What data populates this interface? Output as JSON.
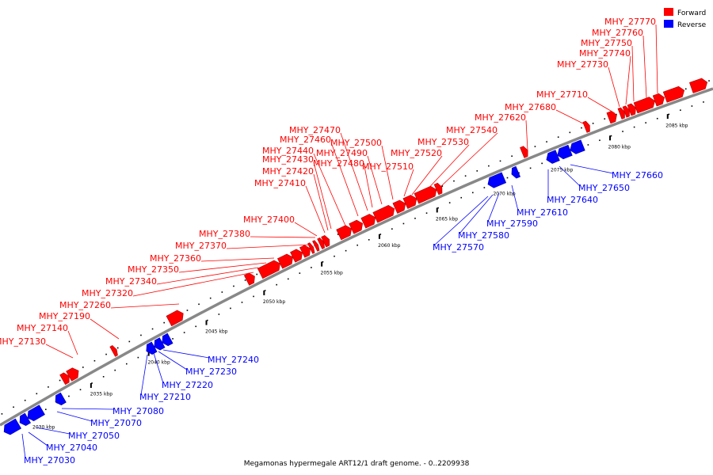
{
  "legend": {
    "forward": {
      "label": "Forward",
      "color": "#ff0000"
    },
    "reverse": {
      "label": "Reverse",
      "color": "#0000ff"
    }
  },
  "caption": "Megamonas hypermegale ART12/1 draft genome. - 0..2209938",
  "backbone_color": "#888888",
  "ticks": [
    {
      "pos": 2030,
      "label": "2030 kbp"
    },
    {
      "pos": 2035,
      "label": "2035 kbp"
    },
    {
      "pos": 2040,
      "label": "2040 kbp"
    },
    {
      "pos": 2045,
      "label": "2045 kbp"
    },
    {
      "pos": 2050,
      "label": "2050 kbp"
    },
    {
      "pos": 2055,
      "label": "2055 kbp"
    },
    {
      "pos": 2060,
      "label": "2060 kbp"
    },
    {
      "pos": 2065,
      "label": "2065 kbp"
    },
    {
      "pos": 2070,
      "label": "2070 kbp"
    },
    {
      "pos": 2075,
      "label": "2075 kbp"
    },
    {
      "pos": 2080,
      "label": "2080 kbp"
    },
    {
      "pos": 2085,
      "label": "2085 kbp"
    }
  ],
  "forward_labels": [
    "MHY_27130",
    "MHY_27140",
    "MHY_27190",
    "MHY_27260",
    "MHY_27320",
    "MHY_27340",
    "MHY_27350",
    "MHY_27360",
    "MHY_27370",
    "MHY_27380",
    "MHY_27400",
    "MHY_27410",
    "MHY_27420",
    "MHY_27430",
    "MHY_27440",
    "MHY_27460",
    "MHY_27470",
    "MHY_27480",
    "MHY_27490",
    "MHY_27500",
    "MHY_27510",
    "MHY_27520",
    "MHY_27530",
    "MHY_27540",
    "MHY_27620",
    "MHY_27680",
    "MHY_27710",
    "MHY_27730",
    "MHY_27740",
    "MHY_27750",
    "MHY_27760",
    "MHY_27770"
  ],
  "reverse_labels": [
    "MHY_27030",
    "MHY_27040",
    "MHY_27050",
    "MHY_27070",
    "MHY_27080",
    "MHY_27210",
    "MHY_27220",
    "MHY_27230",
    "MHY_27240",
    "MHY_27570",
    "MHY_27580",
    "MHY_27590",
    "MHY_27610",
    "MHY_27640",
    "MHY_27650",
    "MHY_27660"
  ]
}
